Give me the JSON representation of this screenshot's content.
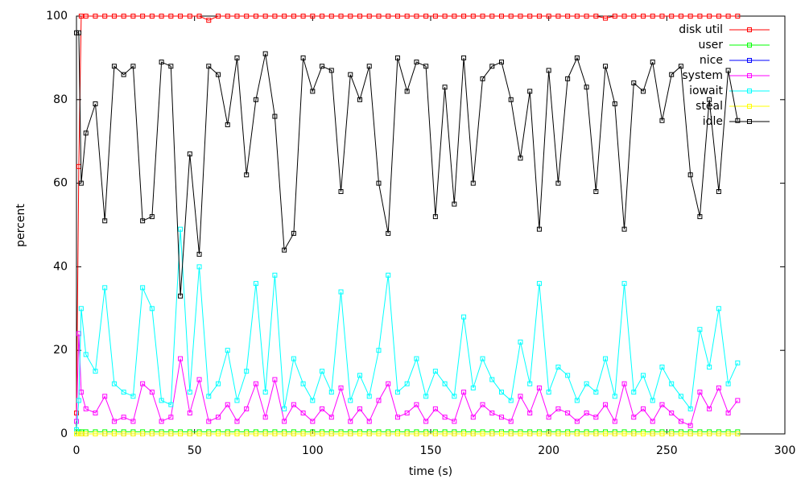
{
  "chart_data": {
    "type": "line",
    "xlabel": "time (s)",
    "ylabel": "percent",
    "xlim": [
      0,
      300
    ],
    "ylim": [
      0,
      100
    ],
    "xticks": [
      0,
      50,
      100,
      150,
      200,
      250,
      300
    ],
    "yticks": [
      0,
      20,
      40,
      60,
      80,
      100
    ],
    "grid": false,
    "legend": "top-right",
    "x": [
      0,
      1,
      2,
      4,
      8,
      12,
      16,
      20,
      24,
      28,
      32,
      36,
      40,
      44,
      48,
      52,
      56,
      60,
      64,
      68,
      72,
      76,
      80,
      84,
      88,
      92,
      96,
      100,
      104,
      108,
      112,
      116,
      120,
      124,
      128,
      132,
      136,
      140,
      144,
      148,
      152,
      156,
      160,
      164,
      168,
      172,
      176,
      180,
      184,
      188,
      192,
      196,
      200,
      204,
      208,
      212,
      216,
      220,
      224,
      228,
      232,
      236,
      240,
      244,
      248,
      252,
      256,
      260,
      264,
      268,
      272,
      276,
      280
    ],
    "series": [
      {
        "name": "disk util",
        "color": "#ff0000",
        "values": [
          5,
          64,
          100,
          100,
          100,
          100,
          100,
          100,
          100,
          100,
          100,
          100,
          100,
          100,
          100,
          100,
          99,
          100,
          100,
          100,
          100,
          100,
          100,
          100,
          100,
          100,
          100,
          100,
          100,
          100,
          100,
          100,
          100,
          100,
          100,
          100,
          100,
          100,
          100,
          100,
          100,
          100,
          100,
          100,
          100,
          100,
          100,
          100,
          100,
          100,
          100,
          100,
          100,
          100,
          100,
          100,
          100,
          100,
          99.5,
          100,
          100,
          100,
          100,
          100,
          100,
          100,
          100,
          100,
          100,
          100,
          100,
          100,
          100
        ]
      },
      {
        "name": "user",
        "color": "#00ff00",
        "values": [
          0.5,
          0.5,
          0.5,
          0.5,
          0.5,
          0.5,
          0.5,
          0.5,
          0.5,
          0.5,
          0.5,
          0.5,
          0.5,
          0.5,
          0.5,
          0.5,
          0.5,
          0.5,
          0.5,
          0.5,
          0.5,
          0.5,
          0.5,
          0.5,
          0.5,
          0.5,
          0.5,
          0.5,
          0.5,
          0.5,
          0.5,
          0.5,
          0.5,
          0.5,
          0.5,
          0.5,
          0.5,
          0.5,
          0.5,
          0.5,
          0.5,
          0.5,
          0.5,
          0.5,
          0.5,
          0.5,
          0.5,
          0.5,
          0.5,
          0.5,
          0.5,
          0.5,
          0.5,
          0.5,
          0.5,
          0.5,
          0.5,
          0.5,
          0.5,
          0.5,
          0.5,
          0.5,
          0.5,
          0.5,
          0.5,
          0.5,
          0.5,
          0.5,
          0.5,
          0.5,
          0.5,
          0.5,
          0.5
        ]
      },
      {
        "name": "nice",
        "color": "#0000ff",
        "values": [
          0,
          0,
          0,
          0,
          0,
          0,
          0,
          0,
          0,
          0,
          0,
          0,
          0,
          0,
          0,
          0,
          0,
          0,
          0,
          0,
          0,
          0,
          0,
          0,
          0,
          0,
          0,
          0,
          0,
          0,
          0,
          0,
          0,
          0,
          0,
          0,
          0,
          0,
          0,
          0,
          0,
          0,
          0,
          0,
          0,
          0,
          0,
          0,
          0,
          0,
          0,
          0,
          0,
          0,
          0,
          0,
          0,
          0,
          0,
          0,
          0,
          0,
          0,
          0,
          0,
          0,
          0,
          0,
          0,
          0,
          0,
          0,
          0
        ]
      },
      {
        "name": "system",
        "color": "#ff00ff",
        "values": [
          3,
          24,
          10,
          6,
          5,
          9,
          3,
          4,
          3,
          12,
          10,
          3,
          4,
          18,
          5,
          13,
          3,
          4,
          7,
          3,
          6,
          12,
          4,
          13,
          3,
          7,
          5,
          3,
          6,
          4,
          11,
          3,
          6,
          3,
          8,
          12,
          4,
          5,
          7,
          3,
          6,
          4,
          3,
          10,
          4,
          7,
          5,
          4,
          3,
          9,
          5,
          11,
          4,
          6,
          5,
          3,
          5,
          4,
          7,
          3,
          12,
          4,
          6,
          3,
          7,
          5,
          3,
          2,
          10,
          6,
          11,
          5,
          8
        ]
      },
      {
        "name": "iowait",
        "color": "#00ffff",
        "values": [
          1,
          8,
          30,
          19,
          15,
          35,
          12,
          10,
          9,
          35,
          30,
          8,
          7,
          49,
          10,
          40,
          9,
          12,
          20,
          8,
          15,
          36,
          10,
          38,
          6,
          18,
          12,
          8,
          15,
          10,
          34,
          8,
          14,
          9,
          20,
          38,
          10,
          12,
          18,
          9,
          15,
          12,
          9,
          28,
          11,
          18,
          13,
          10,
          8,
          22,
          12,
          36,
          10,
          16,
          14,
          8,
          12,
          10,
          18,
          9,
          36,
          10,
          14,
          8,
          16,
          12,
          9,
          6,
          25,
          16,
          30,
          12,
          17
        ]
      },
      {
        "name": "steal",
        "color": "#ffff00",
        "values": [
          0,
          0,
          0,
          0,
          0,
          0,
          0,
          0,
          0,
          0,
          0,
          0,
          0,
          0,
          0,
          0,
          0,
          0,
          0,
          0,
          0,
          0,
          0,
          0,
          0,
          0,
          0,
          0,
          0,
          0,
          0,
          0,
          0,
          0,
          0,
          0,
          0,
          0,
          0,
          0,
          0,
          0,
          0,
          0,
          0,
          0,
          0,
          0,
          0,
          0,
          0,
          0,
          0,
          0,
          0,
          0,
          0,
          0,
          0,
          0,
          0,
          0,
          0,
          0,
          0,
          0,
          0,
          0,
          0,
          0,
          0,
          0,
          0
        ]
      },
      {
        "name": "idle",
        "color": "#000000",
        "values": [
          96,
          96,
          60,
          72,
          79,
          51,
          88,
          86,
          88,
          51,
          52,
          89,
          88,
          33,
          67,
          43,
          88,
          86,
          74,
          90,
          62,
          80,
          91,
          76,
          44,
          48,
          90,
          82,
          88,
          87,
          58,
          86,
          80,
          88,
          60,
          48,
          90,
          82,
          89,
          88,
          52,
          83,
          55,
          90,
          60,
          85,
          88,
          89,
          80,
          66,
          82,
          49,
          87,
          60,
          85,
          90,
          83,
          58,
          88,
          79,
          49,
          84,
          82,
          89,
          75,
          86,
          88,
          62,
          52,
          80,
          58,
          87,
          75
        ]
      }
    ]
  }
}
